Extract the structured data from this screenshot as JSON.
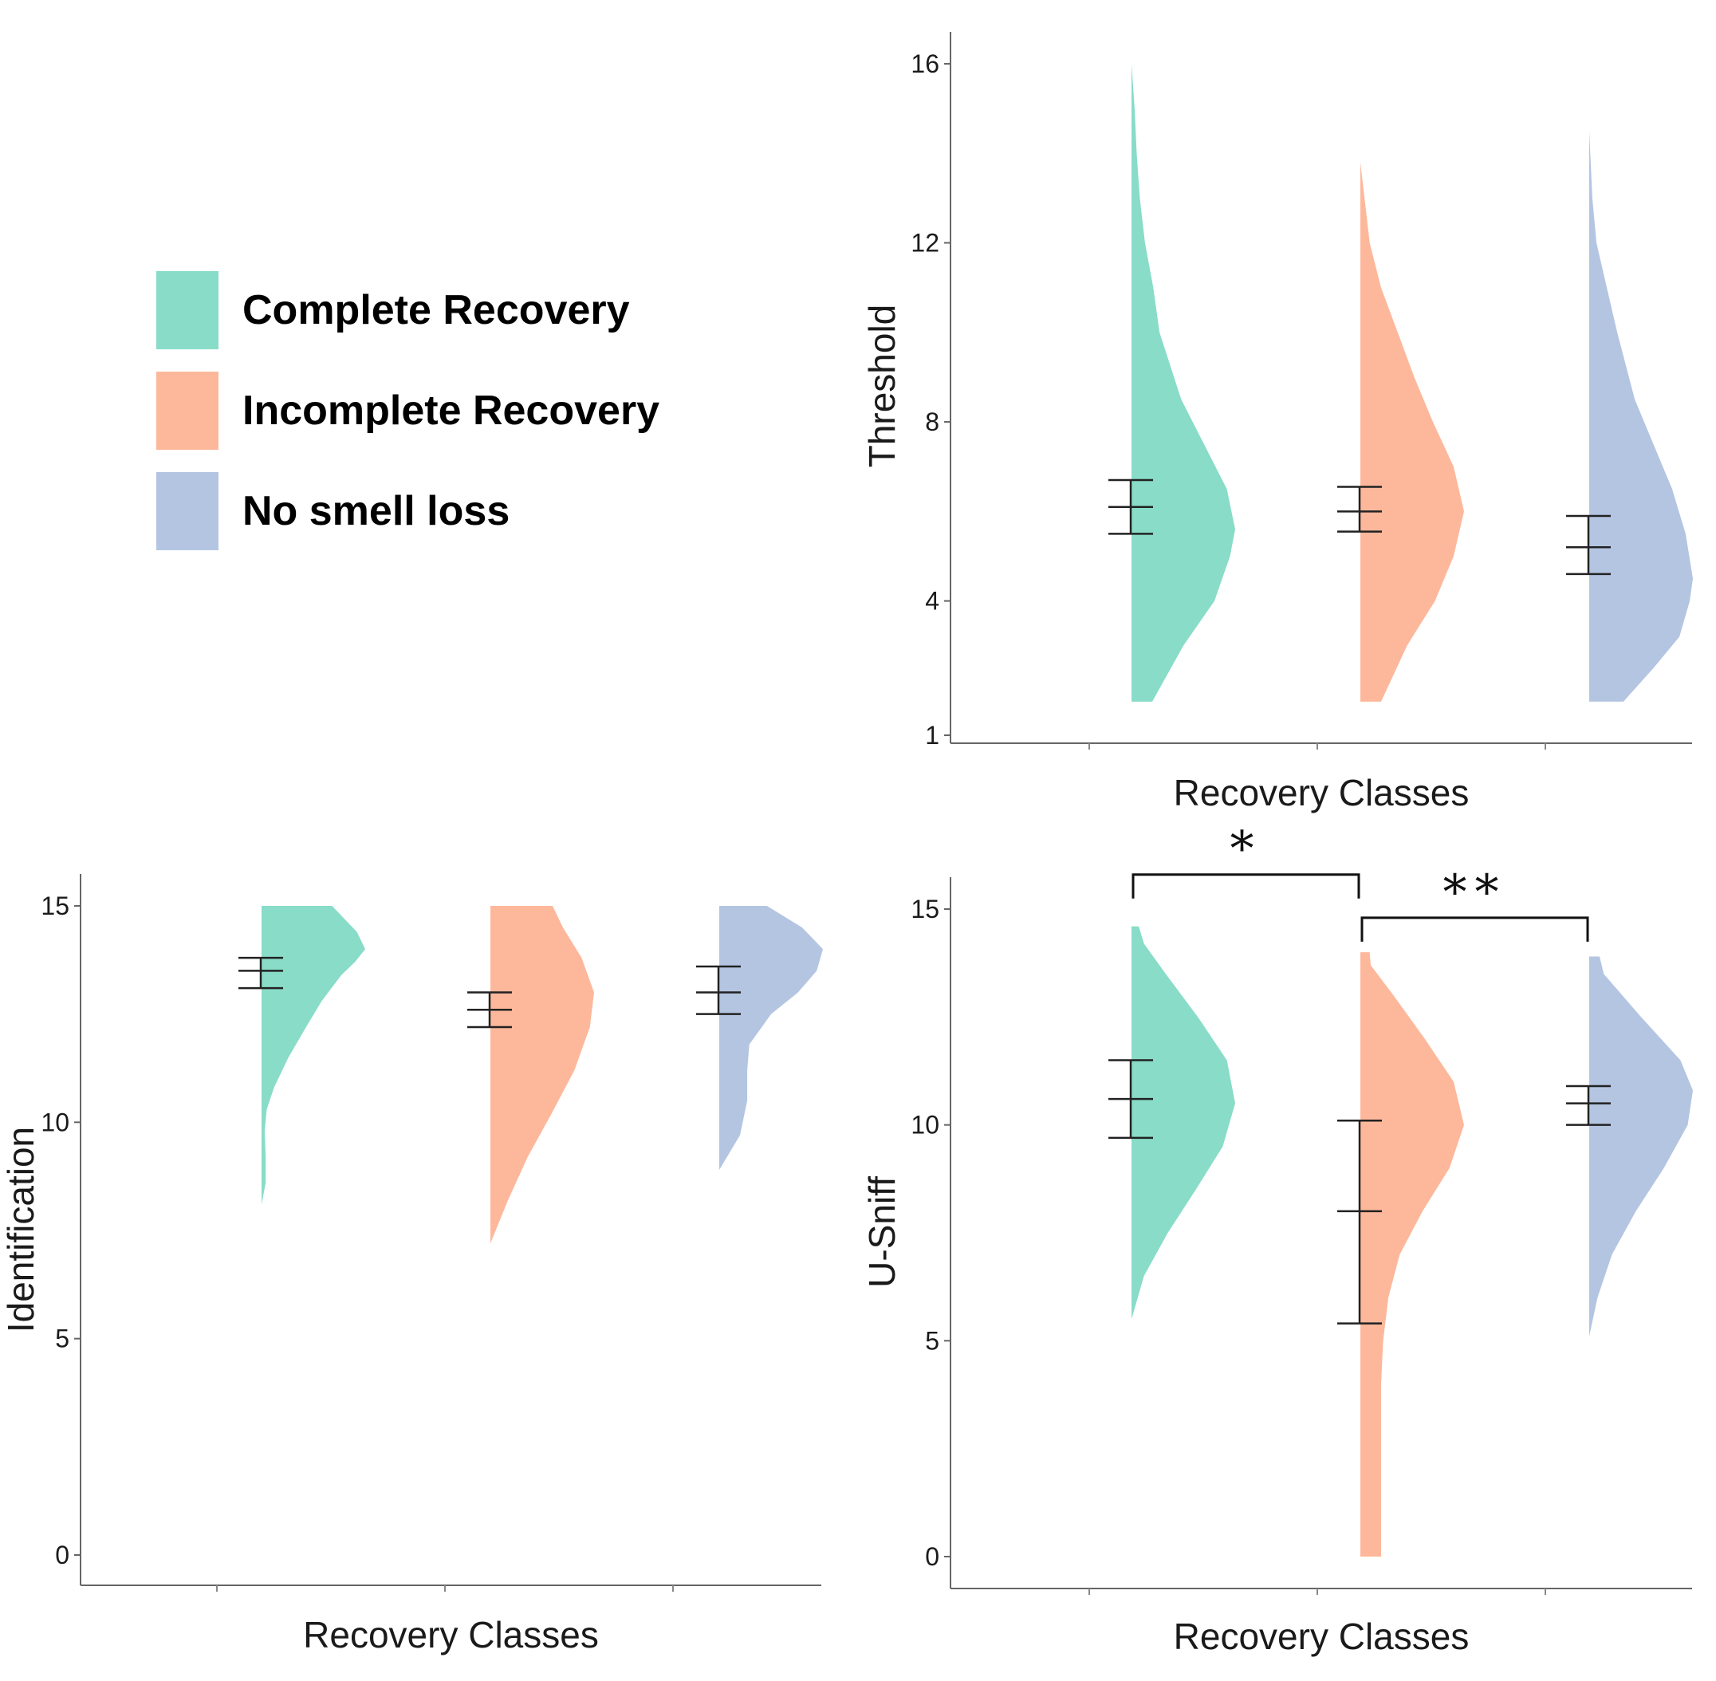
{
  "legend": {
    "items": [
      {
        "label": "Complete Recovery",
        "color": "#88dcc8"
      },
      {
        "label": "Incomplete Recovery",
        "color": "#fdb89b"
      },
      {
        "label": "No smell loss",
        "color": "#b4c5e2"
      }
    ]
  },
  "chart_data": [
    {
      "id": "threshold",
      "type": "violin",
      "title": "",
      "xlabel": "Recovery Classes",
      "ylabel": "Threshold",
      "ylim": [
        1,
        16
      ],
      "yticks": [
        1,
        4,
        8,
        12,
        16
      ],
      "categories": [
        "Complete Recovery",
        "Incomplete Recovery",
        "No smell loss"
      ],
      "series": [
        {
          "name": "Complete Recovery",
          "color": "#88dcc8",
          "min": 1.75,
          "max": 16.0,
          "mean": 6.1,
          "ci_low": 5.5,
          "ci_high": 6.7,
          "density": [
            [
              1.75,
              0.2
            ],
            [
              3,
              0.5
            ],
            [
              4,
              0.8
            ],
            [
              5,
              0.95
            ],
            [
              5.6,
              1.0
            ],
            [
              6.5,
              0.92
            ],
            [
              7.5,
              0.7
            ],
            [
              8.5,
              0.48
            ],
            [
              10,
              0.27
            ],
            [
              11,
              0.21
            ],
            [
              12,
              0.13
            ],
            [
              13,
              0.08
            ],
            [
              14,
              0.05
            ],
            [
              15,
              0.03
            ],
            [
              16,
              0.0
            ]
          ]
        },
        {
          "name": "Incomplete Recovery",
          "color": "#fdb89b",
          "min": 1.75,
          "max": 13.8,
          "mean": 6.0,
          "ci_low": 5.55,
          "ci_high": 6.55,
          "density": [
            [
              1.75,
              0.2
            ],
            [
              3,
              0.45
            ],
            [
              4,
              0.72
            ],
            [
              5,
              0.9
            ],
            [
              6,
              1.0
            ],
            [
              7,
              0.9
            ],
            [
              8,
              0.7
            ],
            [
              9,
              0.52
            ],
            [
              10,
              0.36
            ],
            [
              11,
              0.2
            ],
            [
              12,
              0.09
            ],
            [
              13,
              0.04
            ],
            [
              13.8,
              0.0
            ]
          ]
        },
        {
          "name": "No smell loss",
          "color": "#b4c5e2",
          "min": 1.75,
          "max": 14.5,
          "mean": 5.2,
          "ci_low": 4.6,
          "ci_high": 5.9,
          "density": [
            [
              1.75,
              0.33
            ],
            [
              2.5,
              0.62
            ],
            [
              3.2,
              0.87
            ],
            [
              4,
              0.97
            ],
            [
              4.5,
              1.0
            ],
            [
              5.5,
              0.93
            ],
            [
              6.5,
              0.8
            ],
            [
              7.5,
              0.62
            ],
            [
              8.5,
              0.44
            ],
            [
              10,
              0.27
            ],
            [
              11,
              0.17
            ],
            [
              12,
              0.07
            ],
            [
              13,
              0.03
            ],
            [
              14.5,
              0.0
            ]
          ]
        }
      ],
      "annotations": []
    },
    {
      "id": "identification",
      "type": "violin",
      "title": "",
      "xlabel": "Recovery Classes",
      "ylabel": "Identification",
      "ylim": [
        0,
        15
      ],
      "yticks": [
        0,
        5,
        10,
        15
      ],
      "categories": [
        "Complete Recovery",
        "Incomplete Recovery",
        "No smell loss"
      ],
      "series": [
        {
          "name": "Complete Recovery",
          "color": "#88dcc8",
          "min": 8.1,
          "max": 15.0,
          "mean": 13.5,
          "ci_low": 13.1,
          "ci_high": 13.8,
          "density": [
            [
              8.1,
              0.0
            ],
            [
              8.6,
              0.04
            ],
            [
              9.2,
              0.04
            ],
            [
              9.8,
              0.03
            ],
            [
              10.3,
              0.05
            ],
            [
              10.8,
              0.12
            ],
            [
              11.5,
              0.26
            ],
            [
              12.2,
              0.43
            ],
            [
              12.8,
              0.58
            ],
            [
              13.4,
              0.77
            ],
            [
              13.7,
              0.9
            ],
            [
              14,
              1.0
            ],
            [
              14.4,
              0.92
            ],
            [
              15,
              0.68
            ]
          ]
        },
        {
          "name": "Incomplete Recovery",
          "color": "#fdb89b",
          "min": 7.2,
          "max": 15.0,
          "mean": 12.6,
          "ci_low": 12.2,
          "ci_high": 13.0,
          "density": [
            [
              7.2,
              0.0
            ],
            [
              8.2,
              0.17
            ],
            [
              9.2,
              0.36
            ],
            [
              10.2,
              0.59
            ],
            [
              11.2,
              0.81
            ],
            [
              12.2,
              0.96
            ],
            [
              13,
              1.0
            ],
            [
              13.8,
              0.88
            ],
            [
              14.5,
              0.7
            ],
            [
              15,
              0.6
            ]
          ]
        },
        {
          "name": "No smell loss",
          "color": "#b4c5e2",
          "min": 8.9,
          "max": 15.0,
          "mean": 13.0,
          "ci_low": 12.5,
          "ci_high": 13.6,
          "density": [
            [
              8.9,
              0.0
            ],
            [
              9.7,
              0.2
            ],
            [
              10.5,
              0.27
            ],
            [
              11.2,
              0.27
            ],
            [
              11.8,
              0.29
            ],
            [
              12.5,
              0.5
            ],
            [
              13,
              0.76
            ],
            [
              13.5,
              0.94
            ],
            [
              14,
              1.0
            ],
            [
              14.5,
              0.8
            ],
            [
              15,
              0.46
            ]
          ]
        }
      ],
      "annotations": []
    },
    {
      "id": "usniff",
      "type": "violin",
      "title": "",
      "xlabel": "Recovery Classes",
      "ylabel": "U-Sniff",
      "ylim": [
        0,
        15
      ],
      "yticks": [
        0,
        5,
        10,
        15
      ],
      "categories": [
        "Complete Recovery",
        "Incomplete Recovery",
        "No smell loss"
      ],
      "series": [
        {
          "name": "Complete Recovery",
          "color": "#88dcc8",
          "min": 5.5,
          "max": 14.6,
          "mean": 10.6,
          "ci_low": 9.7,
          "ci_high": 11.5,
          "density": [
            [
              5.5,
              0.0
            ],
            [
              6.5,
              0.12
            ],
            [
              7.5,
              0.35
            ],
            [
              8.5,
              0.62
            ],
            [
              9.5,
              0.88
            ],
            [
              10.5,
              1.0
            ],
            [
              11.5,
              0.92
            ],
            [
              12.5,
              0.64
            ],
            [
              13.5,
              0.33
            ],
            [
              14.2,
              0.12
            ],
            [
              14.6,
              0.07
            ]
          ]
        },
        {
          "name": "Incomplete Recovery",
          "color": "#fdb89b",
          "min": 0.0,
          "max": 14.0,
          "mean": 8.0,
          "ci_low": 5.4,
          "ci_high": 10.1,
          "density": [
            [
              0,
              0.2
            ],
            [
              2,
              0.2
            ],
            [
              4,
              0.2
            ],
            [
              5,
              0.22
            ],
            [
              6,
              0.27
            ],
            [
              7,
              0.38
            ],
            [
              8,
              0.6
            ],
            [
              9,
              0.86
            ],
            [
              10,
              1.0
            ],
            [
              11,
              0.9
            ],
            [
              12,
              0.62
            ],
            [
              13,
              0.32
            ],
            [
              13.7,
              0.1
            ],
            [
              14,
              0.09
            ]
          ]
        },
        {
          "name": "No smell loss",
          "color": "#b4c5e2",
          "min": 5.1,
          "max": 13.9,
          "mean": 10.5,
          "ci_low": 10.0,
          "ci_high": 10.9,
          "density": [
            [
              5.1,
              0.0
            ],
            [
              6,
              0.08
            ],
            [
              7,
              0.22
            ],
            [
              8,
              0.45
            ],
            [
              9,
              0.72
            ],
            [
              10,
              0.95
            ],
            [
              10.8,
              1.0
            ],
            [
              11.5,
              0.88
            ],
            [
              12.5,
              0.5
            ],
            [
              13.5,
              0.14
            ],
            [
              13.9,
              0.1
            ]
          ]
        }
      ],
      "annotations": [
        {
          "text": "*",
          "from": "Complete Recovery",
          "to": "Incomplete Recovery",
          "y": 15.8
        },
        {
          "text": "**",
          "from": "Incomplete Recovery",
          "to": "No smell loss",
          "y": 14.8
        }
      ]
    }
  ]
}
